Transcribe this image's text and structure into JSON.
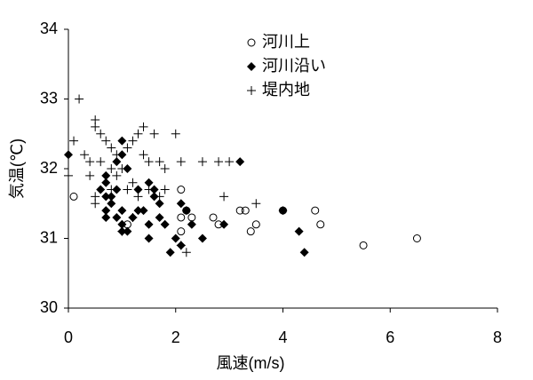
{
  "chart_data": {
    "type": "scatter",
    "x_label": "風速(m/s)",
    "y_label": "気温(℃)",
    "xlim": [
      0,
      8
    ],
    "xticks": [
      0,
      2,
      4,
      6,
      8
    ],
    "ylim": [
      30,
      34
    ],
    "yticks": [
      30,
      31,
      32,
      33,
      34
    ],
    "grid": false,
    "legend": "top",
    "series": [
      {
        "name": "河川上",
        "color": "#000000",
        "marker": "circle",
        "x": [
          0.1,
          1.1,
          2.1,
          2.1,
          2.2,
          2.3,
          2.1,
          2.7,
          2.8,
          3.2,
          3.3,
          3.4,
          3.5,
          4.0,
          4.6,
          4.7,
          5.5,
          6.5
        ],
        "values": [
          31.6,
          31.2,
          31.7,
          31.3,
          31.4,
          31.3,
          31.1,
          31.3,
          31.2,
          31.4,
          31.4,
          31.1,
          31.2,
          31.4,
          31.4,
          31.2,
          30.9,
          31.0
        ]
      },
      {
        "name": "河川沿い",
        "color": "#000000",
        "marker": "diamond",
        "x": [
          0,
          0.6,
          0.7,
          0.7,
          0.7,
          0.7,
          0.7,
          0.8,
          0.8,
          0.9,
          0.9,
          1.0,
          1.0,
          0.9,
          1.0,
          1.0,
          1.0,
          1.1,
          1.2,
          1.3,
          1.3,
          1.4,
          1.5,
          1.5,
          1.5,
          1.6,
          1.6,
          1.7,
          1.7,
          1.8,
          1.9,
          2.0,
          2.1,
          2.1,
          2.2,
          2.3,
          2.5,
          2.9,
          3.2,
          4.0,
          4.3,
          4.4,
          1.1
        ],
        "values": [
          32.2,
          31.7,
          31.8,
          31.9,
          31.6,
          31.4,
          31.3,
          31.6,
          31.5,
          32.1,
          31.7,
          32.4,
          32.2,
          31.3,
          31.4,
          31.2,
          31.1,
          31.1,
          31.3,
          31.7,
          31.4,
          31.4,
          31.8,
          31.2,
          31.0,
          31.7,
          31.6,
          31.5,
          31.3,
          31.2,
          30.8,
          31.0,
          31.5,
          30.9,
          31.4,
          31.2,
          31.0,
          31.2,
          32.1,
          31.4,
          31.1,
          30.8,
          32.0
        ]
      },
      {
        "name": "堤内地",
        "color": "#000000",
        "marker": "plus",
        "x": [
          0.2,
          0.1,
          0.3,
          0.4,
          0.4,
          0.5,
          0.5,
          0.6,
          0.6,
          0.7,
          0.8,
          0.9,
          0.8,
          0.9,
          1.0,
          1.1,
          1.2,
          1.3,
          1.4,
          1.4,
          1.5,
          1.6,
          1.7,
          2.0,
          2.1,
          2.5,
          2.8,
          3.0,
          0.5,
          0.5,
          0.8,
          1.1,
          1.2,
          1.3,
          1.5,
          1.7,
          1.8,
          1.8,
          2.2,
          2.9,
          3.5,
          1.0,
          1.2,
          0.0,
          2.1
        ],
        "values": [
          33.0,
          32.4,
          32.2,
          32.1,
          31.9,
          32.6,
          32.7,
          32.5,
          32.1,
          32.4,
          32.3,
          32.2,
          32.0,
          31.9,
          32.0,
          32.3,
          32.4,
          32.5,
          32.6,
          32.2,
          32.1,
          32.5,
          32.1,
          32.5,
          32.1,
          32.1,
          32.1,
          32.1,
          31.6,
          31.5,
          31.7,
          31.7,
          31.8,
          31.6,
          31.7,
          31.6,
          31.7,
          32.0,
          30.8,
          31.6,
          31.5,
          31.1,
          31.3,
          31.9,
          30.9
        ]
      }
    ]
  }
}
